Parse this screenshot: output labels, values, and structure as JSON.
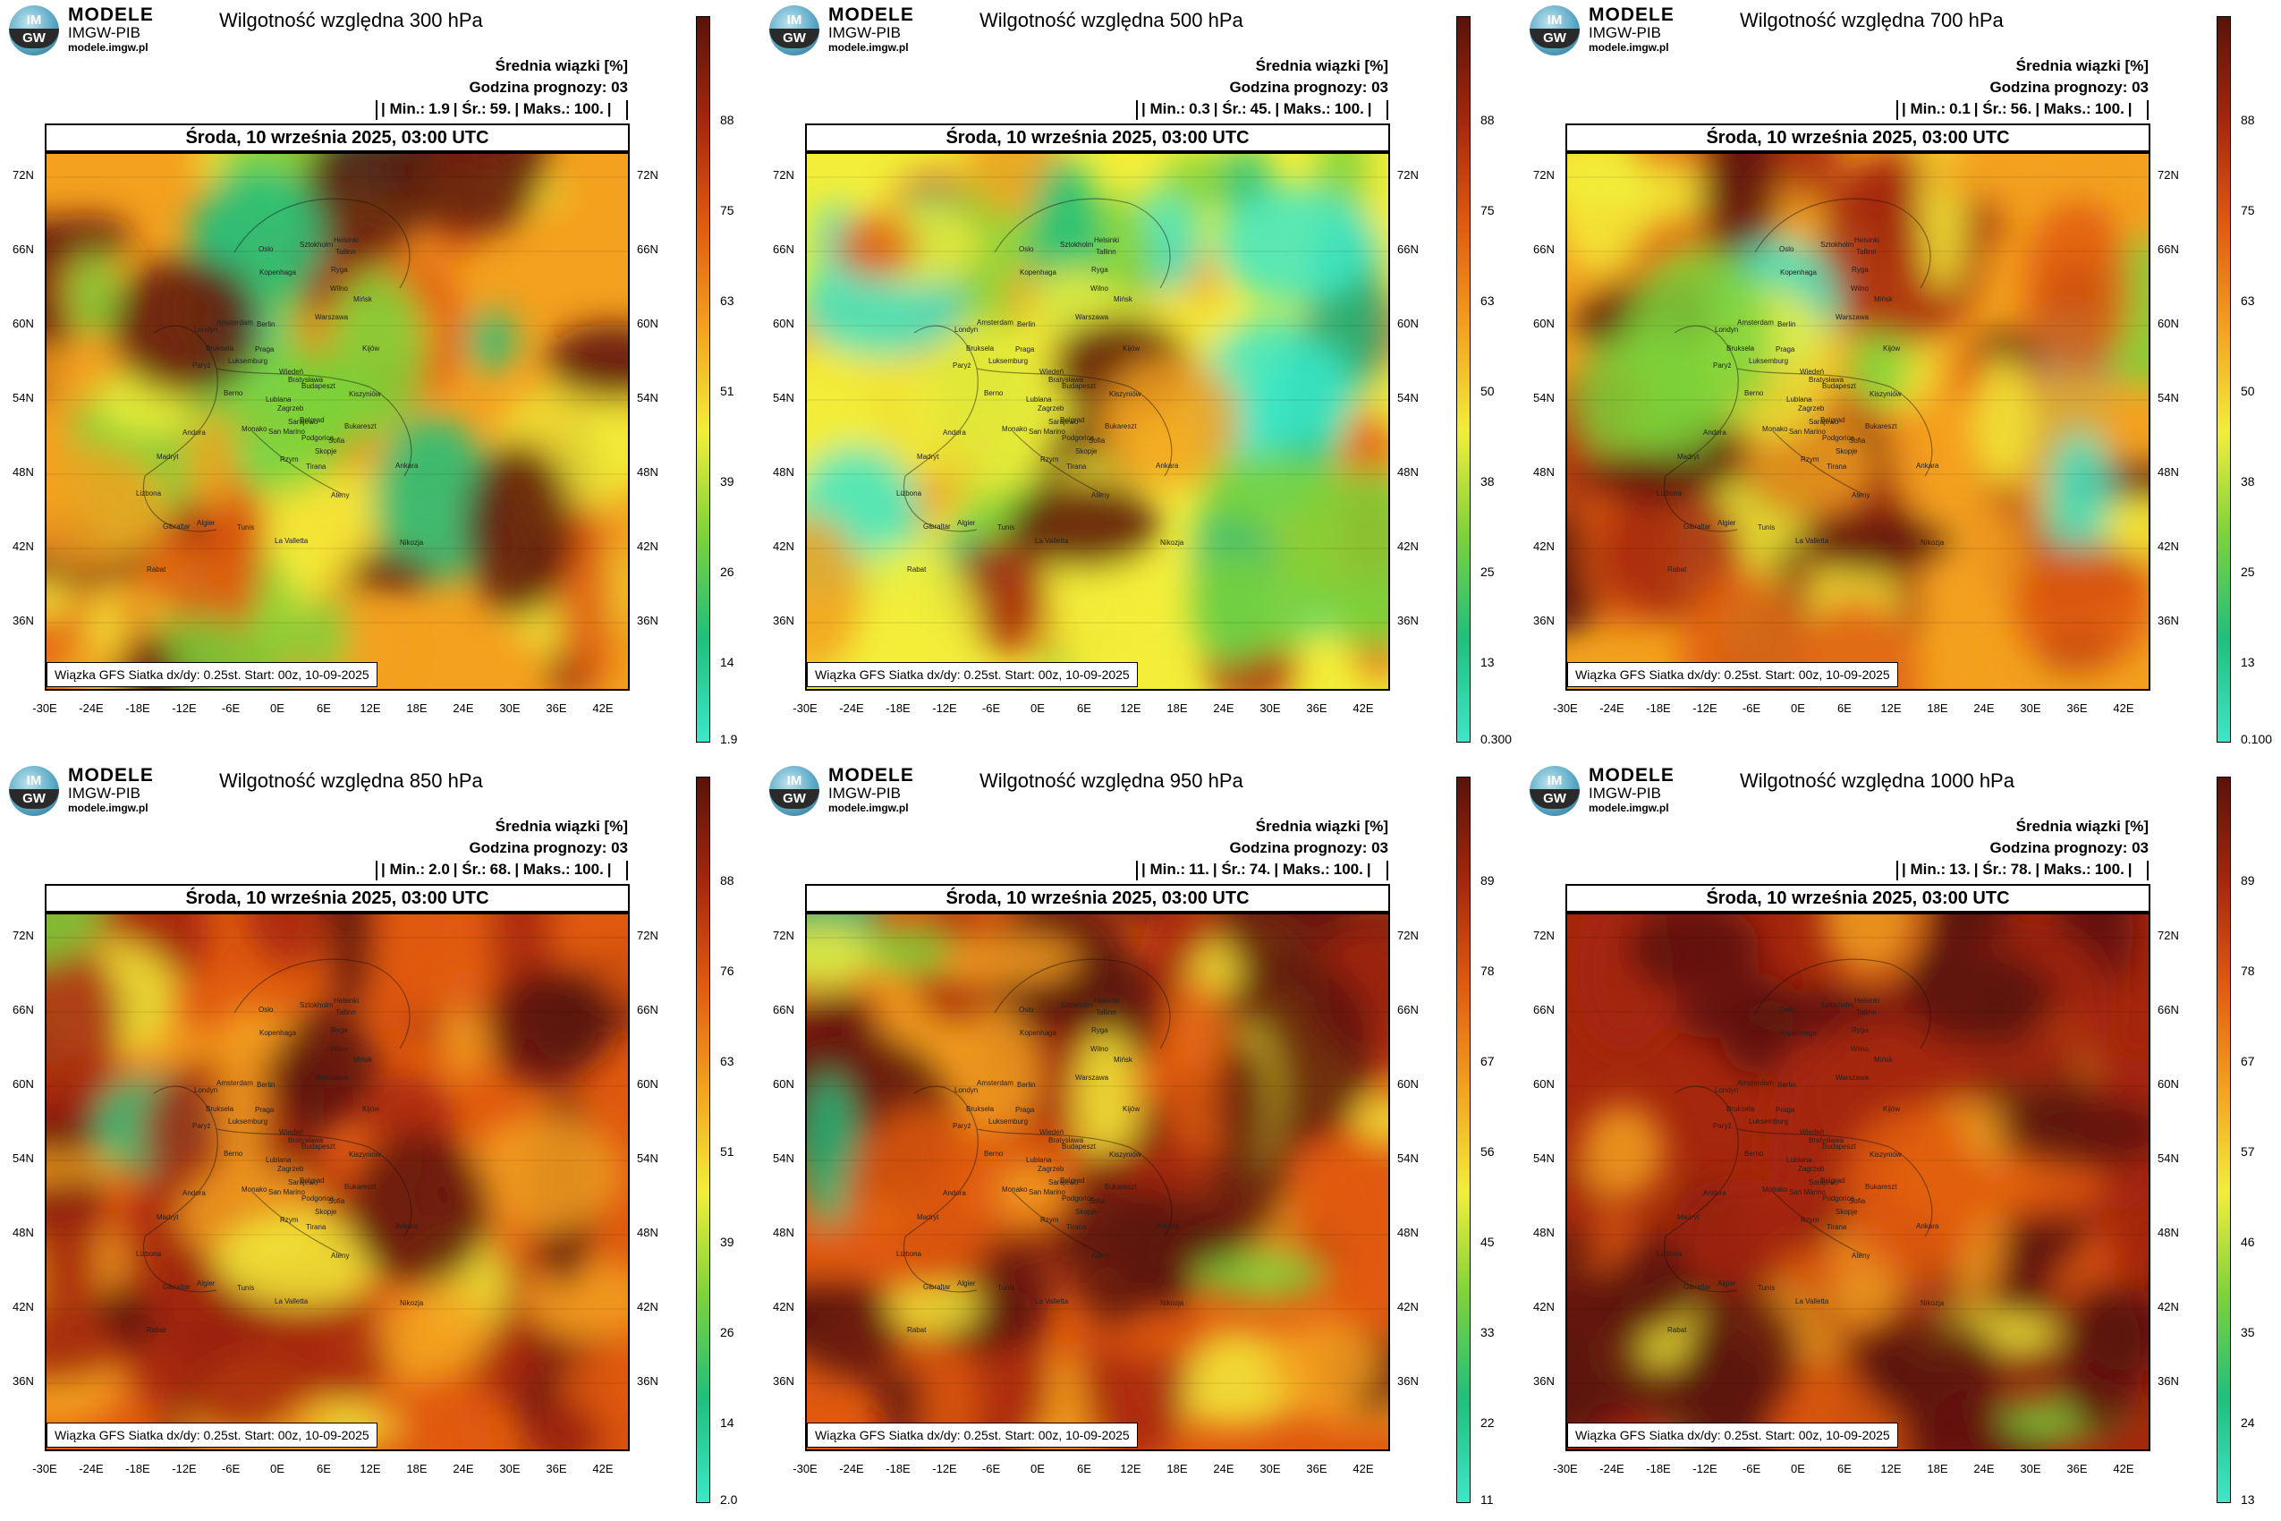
{
  "logo": {
    "badge_top": "IM",
    "badge_bottom": "GW",
    "line1": "MODELE",
    "line2": "IMGW-PIB",
    "line3": "modele.imgw.pl"
  },
  "common": {
    "header1": "Średnia wiązki [%]",
    "header2": "Godzina prognozy: 03",
    "date": "Środa, 10 września 2025, 03:00 UTC",
    "info": "Wiązka GFS Siatka dx/dy: 0.25st. Start: 00z, 10-09-2025",
    "stat_labels": [
      "| Min.:",
      "| Śr.:",
      "| Maks.:",
      "|"
    ],
    "lat_labels": [
      "72N",
      "66N",
      "60N",
      "54N",
      "48N",
      "42N",
      "36N"
    ],
    "lon_labels": [
      "-30E",
      "-24E",
      "-18E",
      "-12E",
      "-6E",
      "0E",
      "6E",
      "12E",
      "18E",
      "24E",
      "30E",
      "36E",
      "42E"
    ]
  },
  "cities": [
    "Oslo",
    "Sztokholm",
    "Helsinki",
    "Tallinn",
    "Ryga",
    "Wilno",
    "Kopenhaga",
    "Mińsk",
    "Amsterdam",
    "Berlin",
    "Warszawa",
    "Londyn",
    "Bruksela",
    "Luksemburg",
    "Paryż",
    "Praga",
    "Kijów",
    "Wiedeń",
    "Bratysława",
    "Budapeszt",
    "Berno",
    "Kiszyniów",
    "Lublana",
    "Zagrzeb",
    "Bukareszt",
    "Monako",
    "Sarajewo",
    "Belgrad",
    "San Marino",
    "Andora",
    "Podgorica",
    "Sofia",
    "Madryt",
    "Rzym",
    "Skopje",
    "Tirana",
    "Ankara",
    "Lizbona",
    "Ateny",
    "Gibraltar",
    "Algier",
    "Tunis",
    "La Valletta",
    "Rabat",
    "Nikozja"
  ],
  "colors": {
    "scale": [
      "#3ee6c8",
      "#1fbf7d",
      "#7dd23a",
      "#f3ee3a",
      "#f3a11f",
      "#e05a10",
      "#a5270d",
      "#5a130a"
    ],
    "accent_logo": "#2d6f8f"
  },
  "panels": [
    {
      "title": "Wilgotność względna 300 hPa",
      "min": "1.9",
      "avg": "59.",
      "max": "100.",
      "ticks": [
        "88",
        "75",
        "63",
        "51",
        "39",
        "26",
        "14",
        "1.9"
      ],
      "moisture_level": 0.59
    },
    {
      "title": "Wilgotność względna 500 hPa",
      "min": "0.3",
      "avg": "45.",
      "max": "100.",
      "ticks": [
        "88",
        "75",
        "63",
        "50",
        "38",
        "25",
        "13",
        "0.300"
      ],
      "moisture_level": 0.45
    },
    {
      "title": "Wilgotność względna 700 hPa",
      "min": "0.1",
      "avg": "56.",
      "max": "100.",
      "ticks": [
        "88",
        "75",
        "63",
        "50",
        "38",
        "25",
        "13",
        "0.100"
      ],
      "moisture_level": 0.56
    },
    {
      "title": "Wilgotność względna 850 hPa",
      "min": "2.0",
      "avg": "68.",
      "max": "100.",
      "ticks": [
        "88",
        "76",
        "63",
        "51",
        "39",
        "26",
        "14",
        "2.0"
      ],
      "moisture_level": 0.68
    },
    {
      "title": "Wilgotność względna 950 hPa",
      "min": "11.",
      "avg": "74.",
      "max": "100.",
      "ticks": [
        "89",
        "78",
        "67",
        "56",
        "45",
        "33",
        "22",
        "11"
      ],
      "moisture_level": 0.74
    },
    {
      "title": "Wilgotność względna 1000 hPa",
      "min": "13.",
      "avg": "78.",
      "max": "100.",
      "ticks": [
        "89",
        "78",
        "67",
        "57",
        "46",
        "35",
        "24",
        "13"
      ],
      "moisture_level": 0.78
    }
  ]
}
